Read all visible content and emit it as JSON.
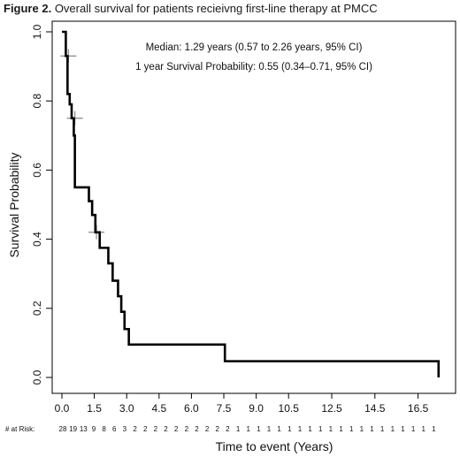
{
  "caption": {
    "label": "Figure 2.",
    "text": "Overall survival for patients recieivng first-line therapy at PMCC"
  },
  "chart_data": {
    "type": "line",
    "subtype": "kaplan-meier-step",
    "xlabel": "Time to event (Years)",
    "ylabel": "Survival Probability",
    "xlim": [
      0,
      17.5
    ],
    "ylim": [
      0,
      1
    ],
    "x_ticks": [
      0.0,
      1.5,
      3.0,
      4.5,
      6.0,
      7.5,
      9.0,
      10.5,
      12.5,
      14.5,
      16.5
    ],
    "x_tick_positions": [
      0,
      1.5,
      3,
      4.5,
      6,
      7.5,
      9,
      10.5,
      12.5,
      14.5,
      16.5
    ],
    "x_tick_labels": [
      "0.0",
      "1.5",
      "3.0",
      "4.5",
      "6.0",
      "7.5",
      "9.0",
      "10.5",
      "12.5",
      "14.5",
      "16.5"
    ],
    "y_ticks": [
      0.0,
      0.2,
      0.4,
      0.6,
      0.8,
      1.0
    ],
    "y_tick_labels": [
      "0.0",
      "0.2",
      "0.4",
      "0.6",
      "0.8",
      "1.0"
    ],
    "grid": false,
    "line_color": "#000000",
    "censor_color": "#888888",
    "series": [
      {
        "steps": [
          [
            0,
            1.0
          ],
          [
            0.18,
            0.93
          ],
          [
            0.26,
            0.82
          ],
          [
            0.36,
            0.79
          ],
          [
            0.45,
            0.75
          ],
          [
            0.55,
            0.7
          ],
          [
            0.6,
            0.55
          ],
          [
            1.1,
            0.55
          ],
          [
            1.25,
            0.51
          ],
          [
            1.4,
            0.47
          ],
          [
            1.55,
            0.42
          ],
          [
            1.75,
            0.375
          ],
          [
            2.15,
            0.33
          ],
          [
            2.35,
            0.28
          ],
          [
            2.6,
            0.235
          ],
          [
            2.75,
            0.19
          ],
          [
            2.9,
            0.14
          ],
          [
            3.1,
            0.095
          ],
          [
            7.5,
            0.095
          ],
          [
            7.55,
            0.047
          ],
          [
            17.45,
            0.047
          ],
          [
            17.45,
            0.0
          ]
        ],
        "censored": [
          [
            0.3,
            0.93
          ],
          [
            0.6,
            0.75
          ],
          [
            1.6,
            0.42
          ]
        ]
      }
    ],
    "annotations": [
      "Median: 1.29 years (0.57 to 2.26 years, 95% CI)",
      "1 year Survival Probability: 0.55 (0.34–0.71, 95% CI)"
    ],
    "at_risk": {
      "label": "# at Risk:",
      "counts": [
        28,
        19,
        13,
        9,
        8,
        6,
        3,
        2,
        2,
        2,
        2,
        2,
        2,
        2,
        2,
        2,
        2,
        1,
        1,
        1,
        1,
        1,
        1,
        1,
        1,
        1,
        1,
        1,
        1,
        1,
        1,
        1,
        1,
        1,
        1,
        1,
        1
      ]
    }
  }
}
